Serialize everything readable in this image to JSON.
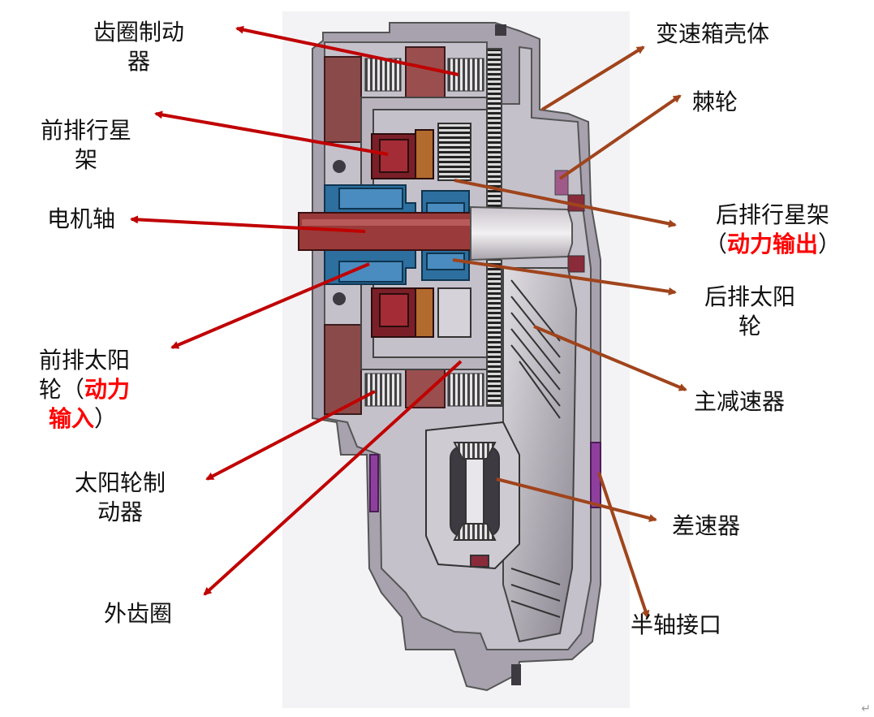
{
  "labels": {
    "ring_brake": [
      "齿圈制动",
      "器"
    ],
    "front_carrier": [
      "前排行星",
      "架"
    ],
    "motor_shaft": "电机轴",
    "front_sun": {
      "line1": "前排太阳",
      "line2_pre": "轮（",
      "line2_red": "动力",
      "line3_red": "输入",
      "line3_post": "）"
    },
    "sun_brake": [
      "太阳轮制",
      "动器"
    ],
    "outer_ring": "外齿圈",
    "housing": "变速箱壳体",
    "ratchet": "棘轮",
    "rear_carrier": {
      "line1": "后排行星架",
      "line2_pre": "（",
      "line2_red": "动力输出",
      "line2_post": "）"
    },
    "rear_sun": [
      "后排太阳",
      "轮"
    ],
    "main_reducer": "主减速器",
    "differential": "差速器",
    "halfshaft": "半轴接口"
  },
  "corner_mark": "↵",
  "colors": {
    "arrow_red": "#c00000",
    "arrow_brown": "#a0441c",
    "highlight": "#ff0000"
  }
}
